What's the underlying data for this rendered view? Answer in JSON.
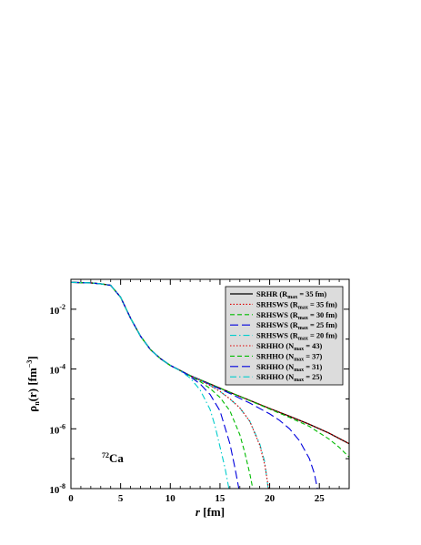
{
  "chart_data": {
    "type": "line",
    "xlabel": "r [fm]",
    "ylabel": "ρn(r) [fm−3]",
    "ylabel_parts": {
      "rho": "ρ",
      "sub": "n",
      "arg": "(r) [fm",
      "sup": "−3",
      "close": "]"
    },
    "xlabel_parts": {
      "var": "r",
      "unit": " [fm]"
    },
    "annotation": {
      "mass": "72",
      "element": "Ca"
    },
    "xlim": [
      0,
      28
    ],
    "ylim_log10": [
      -8,
      -1
    ],
    "yscale": "log",
    "x_ticks": [
      "0",
      "5",
      "10",
      "15",
      "20",
      "25"
    ],
    "x_tick_values": [
      0,
      5,
      10,
      15,
      20,
      25
    ],
    "y_ticks": [
      {
        "base": "10",
        "exp": "-2",
        "value": -2
      },
      {
        "base": "10",
        "exp": "-4",
        "value": -4
      },
      {
        "base": "10",
        "exp": "-6",
        "value": -6
      },
      {
        "base": "10",
        "exp": "-8",
        "value": -8
      }
    ],
    "legend_position": "top-right",
    "series": [
      {
        "name": "SRHR    (Rmax = 35 fm)",
        "label_main": "SRHR",
        "label_pre": "(R",
        "label_sub": "max",
        "label_post": " = 35 fm)",
        "color": "#000000",
        "dash": "solid",
        "x": [
          0,
          2,
          3,
          4,
          5,
          6,
          7,
          8,
          9,
          10,
          11,
          12,
          14,
          16,
          18,
          20,
          22,
          24,
          26,
          28
        ],
        "log10_y": [
          -1.1,
          -1.12,
          -1.15,
          -1.2,
          -1.6,
          -2.3,
          -2.9,
          -3.35,
          -3.65,
          -3.88,
          -4.05,
          -4.22,
          -4.5,
          -4.78,
          -5.05,
          -5.32,
          -5.58,
          -5.85,
          -6.15,
          -6.5
        ]
      },
      {
        "name": "SRHSWS (Rmax = 35 fm)",
        "label_main": "SRHSWS",
        "label_pre": "(R",
        "label_sub": "max",
        "label_post": " = 35 fm)",
        "color": "#dd0000",
        "dash": "dot",
        "x": [
          0,
          2,
          3,
          4,
          5,
          6,
          7,
          8,
          9,
          10,
          11,
          12,
          14,
          16,
          18,
          20,
          22,
          24,
          26,
          28
        ],
        "log10_y": [
          -1.1,
          -1.12,
          -1.15,
          -1.2,
          -1.6,
          -2.3,
          -2.9,
          -3.35,
          -3.65,
          -3.88,
          -4.05,
          -4.22,
          -4.5,
          -4.78,
          -5.05,
          -5.32,
          -5.58,
          -5.85,
          -6.15,
          -6.5
        ]
      },
      {
        "name": "SRHSWS (Rmax = 30 fm)",
        "label_main": "SRHSWS",
        "label_pre": "(R",
        "label_sub": "max",
        "label_post": " = 30 fm)",
        "color": "#00bb00",
        "dash": "dash",
        "x": [
          0,
          2,
          3,
          4,
          5,
          6,
          7,
          8,
          9,
          10,
          11,
          12,
          14,
          16,
          18,
          20,
          22,
          24,
          26,
          27,
          28
        ],
        "log10_y": [
          -1.1,
          -1.12,
          -1.15,
          -1.2,
          -1.6,
          -2.3,
          -2.9,
          -3.35,
          -3.65,
          -3.88,
          -4.05,
          -4.22,
          -4.5,
          -4.78,
          -5.06,
          -5.34,
          -5.62,
          -5.92,
          -6.35,
          -6.62,
          -6.95
        ]
      },
      {
        "name": "SRHSWS (Rmax = 25 fm)",
        "label_main": "SRHSWS",
        "label_pre": "(R",
        "label_sub": "max",
        "label_post": " = 25 fm)",
        "color": "#0000dd",
        "dash": "longdash",
        "x": [
          0,
          2,
          3,
          4,
          5,
          6,
          7,
          8,
          9,
          10,
          11,
          12,
          14,
          16,
          18,
          20,
          21,
          22,
          23,
          24,
          24.5,
          24.8
        ],
        "log10_y": [
          -1.1,
          -1.12,
          -1.15,
          -1.2,
          -1.6,
          -2.3,
          -2.9,
          -3.35,
          -3.65,
          -3.88,
          -4.05,
          -4.22,
          -4.52,
          -4.82,
          -5.14,
          -5.5,
          -5.72,
          -6.0,
          -6.4,
          -7.0,
          -7.5,
          -8.0
        ]
      },
      {
        "name": "SRHSWS (Rmax = 20 fm)",
        "label_main": "SRHSWS",
        "label_pre": "(R",
        "label_sub": "max",
        "label_post": " = 20 fm)",
        "color": "#00cccc",
        "dash": "dashdot",
        "x": [
          0,
          2,
          3,
          4,
          5,
          6,
          7,
          8,
          9,
          10,
          11,
          12,
          13,
          14,
          15,
          16,
          17,
          18,
          19,
          19.5,
          19.85
        ],
        "log10_y": [
          -1.1,
          -1.12,
          -1.15,
          -1.2,
          -1.6,
          -2.3,
          -2.9,
          -3.35,
          -3.65,
          -3.88,
          -4.05,
          -4.22,
          -4.38,
          -4.55,
          -4.75,
          -5.0,
          -5.3,
          -5.75,
          -6.5,
          -7.1,
          -8.0
        ]
      },
      {
        "name": "SRHHO (Nmax = 43)",
        "label_main": "SRHHO",
        "label_pre": "(N",
        "label_sub": "max",
        "label_post": " = 43)",
        "color": "#dd0000",
        "dash": "dot",
        "x": [
          0,
          2,
          3,
          4,
          5,
          6,
          7,
          8,
          9,
          10,
          11,
          12,
          13,
          14,
          15,
          16,
          17,
          18,
          19,
          19.5,
          19.9
        ],
        "log10_y": [
          -1.1,
          -1.12,
          -1.15,
          -1.2,
          -1.6,
          -2.3,
          -2.9,
          -3.35,
          -3.65,
          -3.88,
          -4.05,
          -4.22,
          -4.38,
          -4.55,
          -4.75,
          -5.0,
          -5.3,
          -5.75,
          -6.55,
          -7.2,
          -8.0
        ]
      },
      {
        "name": "SRHHO (Nmax = 37)",
        "label_main": "SRHHO",
        "label_pre": "(N",
        "label_sub": "max",
        "label_post": " = 37)",
        "color": "#00bb00",
        "dash": "dash",
        "x": [
          0,
          2,
          3,
          4,
          5,
          6,
          7,
          8,
          9,
          10,
          11,
          12,
          13,
          14,
          15,
          16,
          17,
          17.5,
          18,
          18.3
        ],
        "log10_y": [
          -1.1,
          -1.12,
          -1.15,
          -1.2,
          -1.6,
          -2.3,
          -2.9,
          -3.35,
          -3.65,
          -3.88,
          -4.05,
          -4.23,
          -4.42,
          -4.65,
          -4.95,
          -5.4,
          -6.2,
          -6.8,
          -7.5,
          -8.0
        ]
      },
      {
        "name": "SRHHO (Nmax = 31)",
        "label_main": "SRHHO",
        "label_pre": "(N",
        "label_sub": "max",
        "label_post": " = 31)",
        "color": "#0000dd",
        "dash": "longdash",
        "x": [
          0,
          2,
          3,
          4,
          5,
          6,
          7,
          8,
          9,
          10,
          11,
          12,
          13,
          14,
          15,
          16,
          16.5,
          16.9
        ],
        "log10_y": [
          -1.1,
          -1.12,
          -1.15,
          -1.2,
          -1.6,
          -2.3,
          -2.9,
          -3.35,
          -3.65,
          -3.88,
          -4.05,
          -4.25,
          -4.5,
          -4.85,
          -5.4,
          -6.5,
          -7.3,
          -8.0
        ]
      },
      {
        "name": "SRHHO (Nmax = 25)",
        "label_main": "SRHHO",
        "label_pre": "(N",
        "label_sub": "max",
        "label_post": " = 25)",
        "color": "#00cccc",
        "dash": "dashdot",
        "x": [
          0,
          2,
          3,
          4,
          5,
          6,
          7,
          8,
          9,
          10,
          11,
          12,
          13,
          14,
          14.5,
          15,
          15.5,
          15.9
        ],
        "log10_y": [
          -1.1,
          -1.12,
          -1.15,
          -1.2,
          -1.6,
          -2.3,
          -2.9,
          -3.35,
          -3.65,
          -3.88,
          -4.06,
          -4.3,
          -4.7,
          -5.35,
          -5.9,
          -6.6,
          -7.3,
          -8.0
        ]
      }
    ]
  }
}
